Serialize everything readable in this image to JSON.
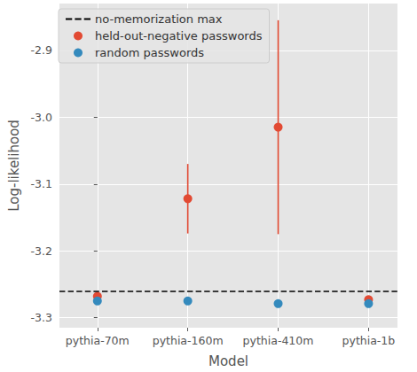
{
  "chart_data": {
    "type": "scatter",
    "x_label": "Model",
    "y_label": "Log-likelihood",
    "categories": [
      "pythia-70m",
      "pythia-160m",
      "pythia-410m",
      "pythia-1b"
    ],
    "ylim": [
      -3.315,
      -2.83
    ],
    "yticks": [
      -3.3,
      -3.2,
      -3.1,
      {
        "value": -3.0,
        "label": "-3.0"
      },
      -2.9
    ],
    "grid": true,
    "legend": "upper left",
    "series": [
      {
        "name": "no-memorization max",
        "type": "hline",
        "color": "#000000",
        "line_style": "dashed",
        "y": -3.258
      },
      {
        "name": "held-out-negative passwords",
        "type": "scatter",
        "color": "#E24A33",
        "marker": "circle",
        "values": [
          -3.268,
          -3.122,
          -3.015,
          -3.273
        ],
        "errors": [
          0.004,
          0.052,
          0.16,
          0.004
        ]
      },
      {
        "name": "random passwords",
        "type": "scatter",
        "color": "#348ABD",
        "marker": "circle",
        "values": [
          -3.275,
          -3.275,
          -3.279,
          -3.279
        ],
        "errors": [
          0.004,
          0.003,
          0.003,
          0.004
        ]
      }
    ]
  }
}
